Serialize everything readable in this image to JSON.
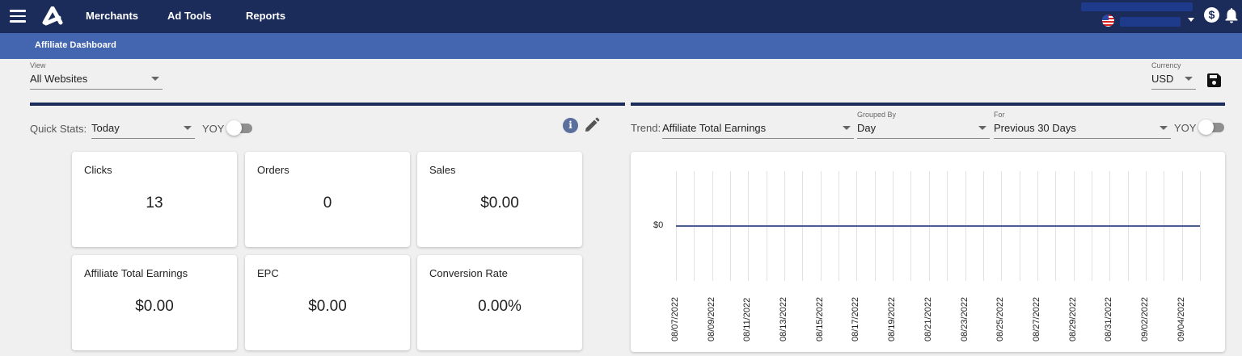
{
  "topbar": {
    "nav": [
      "Merchants",
      "Ad Tools",
      "Reports"
    ],
    "icons": [
      "menu-icon",
      "logo-icon",
      "us-flag-icon",
      "chevron-down-icon",
      "dollar-circle-icon",
      "bell-icon"
    ],
    "colors": {
      "bg": "#1b2b5a",
      "subbar": "#4466b0"
    }
  },
  "subbar": {
    "title": "Affiliate Dashboard"
  },
  "view": {
    "label": "View",
    "value": "All Websites"
  },
  "currency": {
    "label": "Currency",
    "value": "USD"
  },
  "quick_stats": {
    "label": "Quick Stats:",
    "period": "Today",
    "yoy_label": "YOY",
    "yoy_on": false,
    "cards": [
      {
        "title": "Clicks",
        "value": "13"
      },
      {
        "title": "Orders",
        "value": "0"
      },
      {
        "title": "Sales",
        "value": "$0.00"
      },
      {
        "title": "Affiliate Total Earnings",
        "value": "$0.00"
      },
      {
        "title": "EPC",
        "value": "$0.00"
      },
      {
        "title": "Conversion Rate",
        "value": "0.00%"
      }
    ]
  },
  "trend": {
    "label": "Trend:",
    "metric": "Affiliate Total Earnings",
    "grouped_by_label": "Grouped By",
    "grouped_by": "Day",
    "for_label": "For",
    "for_value": "Previous 30 Days",
    "yoy_label": "YOY",
    "yoy_on": false
  },
  "chart_data": {
    "type": "line",
    "title": "Affiliate Total Earnings",
    "xlabel": "",
    "ylabel": "",
    "y_ticks": [
      "$0"
    ],
    "x_tick_labels": [
      "08/07/2022",
      "08/09/2022",
      "08/11/2022",
      "08/13/2022",
      "08/15/2022",
      "08/17/2022",
      "08/19/2022",
      "08/21/2022",
      "08/23/2022",
      "08/25/2022",
      "08/27/2022",
      "08/29/2022",
      "08/31/2022",
      "09/02/2022",
      "09/04/2022"
    ],
    "x": [
      "08/07/2022",
      "08/08/2022",
      "08/09/2022",
      "08/10/2022",
      "08/11/2022",
      "08/12/2022",
      "08/13/2022",
      "08/14/2022",
      "08/15/2022",
      "08/16/2022",
      "08/17/2022",
      "08/18/2022",
      "08/19/2022",
      "08/20/2022",
      "08/21/2022",
      "08/22/2022",
      "08/23/2022",
      "08/24/2022",
      "08/25/2022",
      "08/26/2022",
      "08/27/2022",
      "08/28/2022",
      "08/29/2022",
      "08/30/2022",
      "08/31/2022",
      "09/01/2022",
      "09/02/2022",
      "09/03/2022",
      "09/04/2022",
      "09/05/2022"
    ],
    "series": [
      {
        "name": "Affiliate Total Earnings",
        "color": "#4a5f8f",
        "values": [
          0,
          0,
          0,
          0,
          0,
          0,
          0,
          0,
          0,
          0,
          0,
          0,
          0,
          0,
          0,
          0,
          0,
          0,
          0,
          0,
          0,
          0,
          0,
          0,
          0,
          0,
          0,
          0,
          0,
          0
        ]
      }
    ],
    "grid": "vertical",
    "legend": "none"
  }
}
